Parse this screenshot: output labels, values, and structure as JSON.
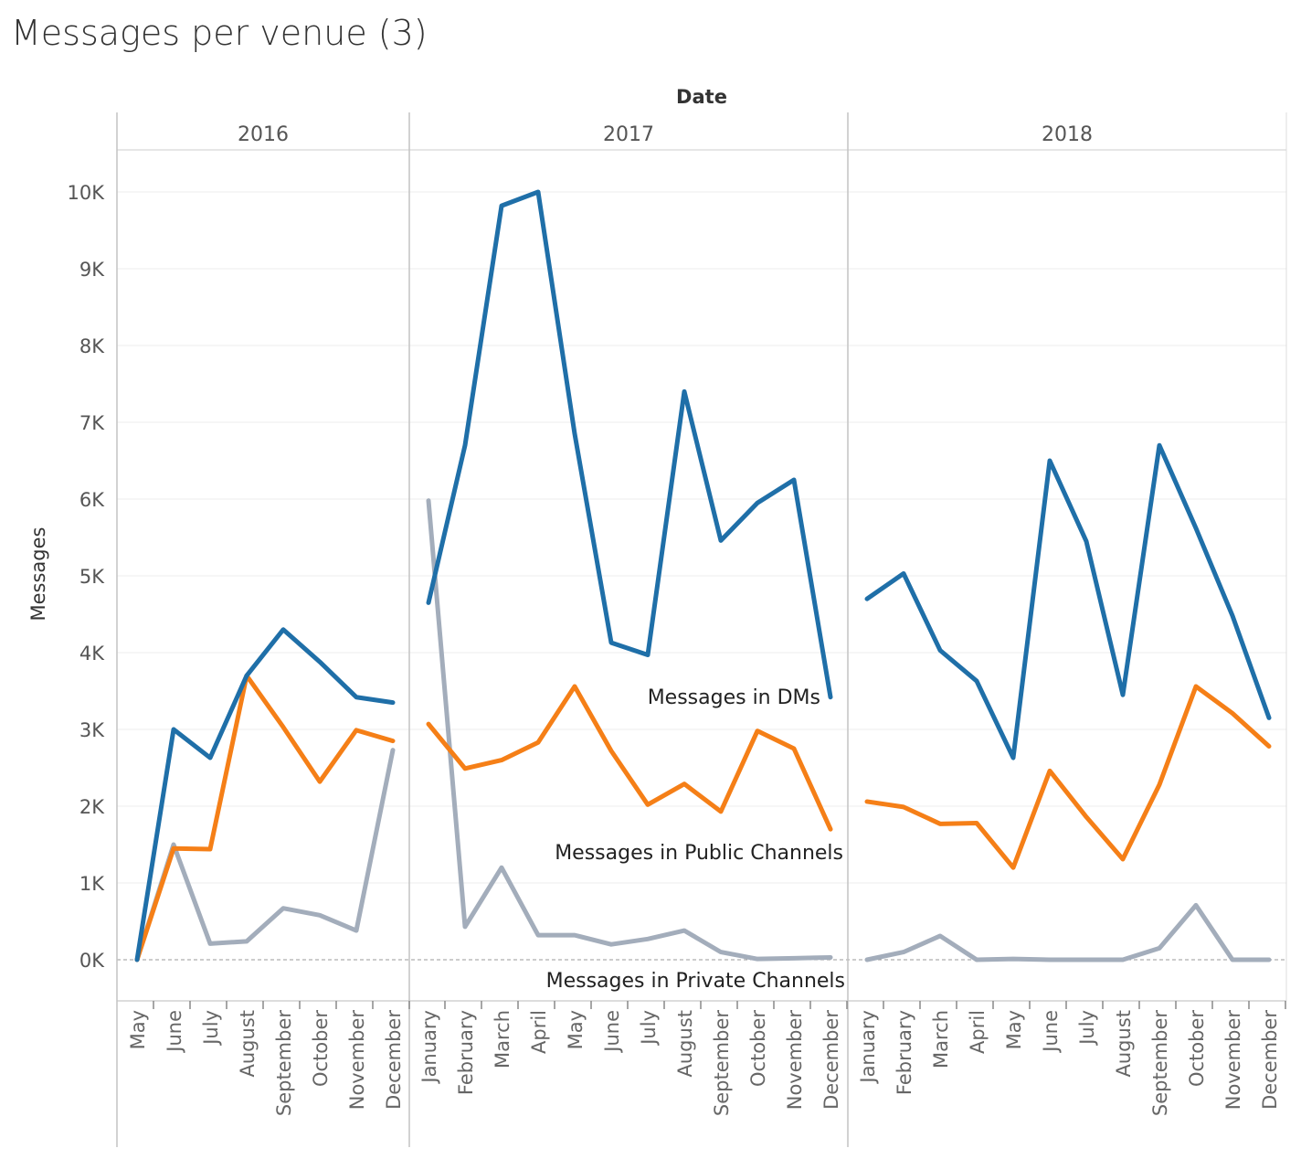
{
  "title": "Messages per venue (3)",
  "chart_data": {
    "type": "line",
    "title": "Messages per venue (3)",
    "xlabel": "Date",
    "ylabel": "Messages",
    "ylim": [
      -500,
      10500
    ],
    "yticks": [
      0,
      1000,
      2000,
      3000,
      4000,
      5000,
      6000,
      7000,
      8000,
      9000,
      10000
    ],
    "ytick_labels": [
      "0K",
      "1K",
      "2K",
      "3K",
      "4K",
      "5K",
      "6K",
      "7K",
      "8K",
      "9K",
      "10K"
    ],
    "grid": true,
    "legend": "inline labels",
    "panels": [
      {
        "year": "2016",
        "months": [
          "May",
          "June",
          "July",
          "August",
          "September",
          "October",
          "November",
          "December"
        ]
      },
      {
        "year": "2017",
        "months": [
          "January",
          "February",
          "March",
          "April",
          "May",
          "June",
          "July",
          "August",
          "September",
          "October",
          "November",
          "December"
        ]
      },
      {
        "year": "2018",
        "months": [
          "January",
          "February",
          "March",
          "April",
          "May",
          "June",
          "July",
          "August",
          "September",
          "October",
          "November",
          "December"
        ]
      }
    ],
    "series": [
      {
        "name": "Messages in DMs",
        "color": "#1f6fa8",
        "values": [
          [
            0,
            3000,
            2630,
            3700,
            4300,
            3880,
            3420,
            3350
          ],
          [
            4650,
            6700,
            9820,
            10000,
            6850,
            4130,
            3970,
            7400,
            5460,
            5950,
            6250,
            3420
          ],
          [
            4700,
            5030,
            4030,
            3630,
            2630,
            6500,
            5450,
            3450,
            6700,
            5620,
            4480,
            3150
          ]
        ]
      },
      {
        "name": "Messages in Public Channels",
        "color": "#f57f17",
        "values": [
          [
            0,
            1450,
            1440,
            3700,
            3030,
            2320,
            2990,
            2850
          ],
          [
            3070,
            2490,
            2600,
            2830,
            3560,
            2720,
            2020,
            2290,
            1930,
            2980,
            2750,
            1700
          ],
          [
            2060,
            1990,
            1770,
            1780,
            1200,
            2460,
            1860,
            1310,
            2280,
            3560,
            3210,
            2780
          ]
        ]
      },
      {
        "name": "Messages in Private Channels",
        "color": "#a3adbb",
        "values": [
          [
            0,
            1500,
            210,
            240,
            670,
            580,
            380,
            2730
          ],
          [
            5980,
            430,
            1200,
            320,
            320,
            200,
            270,
            380,
            100,
            10,
            20,
            30
          ],
          [
            0,
            100,
            310,
            0,
            10,
            0,
            0,
            0,
            150,
            710,
            0,
            0
          ]
        ]
      }
    ],
    "annotations": [
      {
        "text": "Messages in DMs",
        "series": "Messages in DMs"
      },
      {
        "text": "Messages in Public Channels",
        "series": "Messages in Public Channels"
      },
      {
        "text": "Messages in Private Channels",
        "series": "Messages in Private Channels"
      }
    ]
  }
}
